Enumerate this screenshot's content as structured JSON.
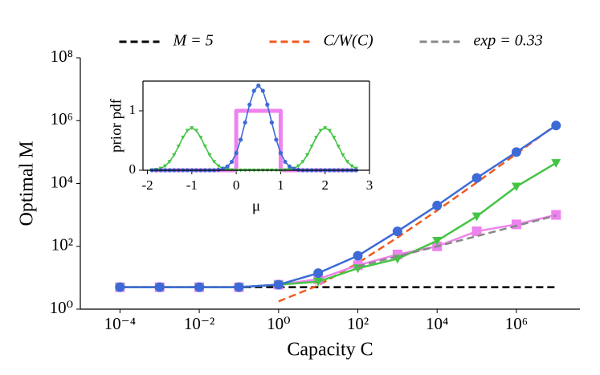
{
  "chart_data": [
    {
      "type": "line",
      "xlabel": "Capacity C",
      "ylabel": "Optimal M",
      "xscale": "log",
      "yscale": "log",
      "xlim": [
        1e-05,
        40000000
      ],
      "ylim": [
        1,
        100000000
      ],
      "xticks": [
        {
          "value": 0.0001,
          "label": "10⁻⁴"
        },
        {
          "value": 0.01,
          "label": "10⁻²"
        },
        {
          "value": 1,
          "label": "10⁰"
        },
        {
          "value": 100,
          "label": "10²"
        },
        {
          "value": 10000,
          "label": "10⁴"
        },
        {
          "value": 1000000,
          "label": "10⁶"
        }
      ],
      "yticks": [
        {
          "value": 1,
          "label": "10⁰"
        },
        {
          "value": 100,
          "label": "10²"
        },
        {
          "value": 10000,
          "label": "10⁴"
        },
        {
          "value": 1000000,
          "label": "10⁶"
        },
        {
          "value": 100000000,
          "label": "10⁸"
        }
      ],
      "legend_loc": "upper center",
      "x": [
        0.0001,
        0.001,
        0.01,
        0.1,
        1,
        10,
        100,
        1000,
        10000,
        100000,
        1000000,
        10000000
      ],
      "series": [
        {
          "name": "M = 5",
          "color": "#000000",
          "dash": true,
          "values": [
            5,
            5,
            5,
            5,
            5,
            5,
            5,
            5,
            5,
            5,
            5,
            5
          ]
        },
        {
          "name": "C/W(C)",
          "color": "#f05a1e",
          "dash": true,
          "values": [
            null,
            null,
            null,
            null,
            1.76,
            5.7,
            29.5,
            190,
            1383,
            10780,
            87850,
            740000
          ]
        },
        {
          "color": "#ee82ee",
          "marker": "square",
          "values": [
            5,
            5,
            5,
            5,
            6,
            9,
            25,
            55,
            100,
            300,
            500,
            1000
          ]
        },
        {
          "color": "#44c444",
          "marker": "triangle",
          "values": [
            5,
            5,
            5,
            5,
            6,
            7.5,
            20,
            40,
            150,
            900,
            8000,
            45000
          ]
        },
        {
          "color": "#3d6ad6",
          "marker": "circle",
          "values": [
            5,
            5,
            5,
            5,
            6,
            14,
            50,
            300,
            2000,
            15000,
            100000,
            700000
          ]
        },
        {
          "name": "exp = 0.33",
          "color": "#888888",
          "dash": true,
          "values": [
            null,
            null,
            null,
            null,
            null,
            null,
            23,
            48,
            100,
            210,
            450,
            950
          ]
        }
      ]
    },
    {
      "type": "line",
      "xlabel": "μ",
      "ylabel": "prior pdf",
      "xlim": [
        -2.1,
        3.0
      ],
      "ylim": [
        0,
        1.5
      ],
      "xticks": [
        -2,
        -1,
        0,
        1,
        2,
        3
      ],
      "yticks": [
        0,
        1
      ],
      "x": [
        -1.9,
        -1.8,
        -1.7,
        -1.6,
        -1.5,
        -1.4,
        -1.3,
        -1.2,
        -1.1,
        -1.0,
        -0.9,
        -0.8,
        -0.7,
        -0.6,
        -0.5,
        -0.4,
        -0.3,
        -0.2,
        -0.1,
        0,
        0.1,
        0.2,
        0.3,
        0.4,
        0.5,
        0.6,
        0.7,
        0.8,
        0.9,
        1.0,
        1.1,
        1.2,
        1.3,
        1.4,
        1.5,
        1.6,
        1.7,
        1.8,
        1.9,
        2.0,
        2.1,
        2.2,
        2.3,
        2.4,
        2.5,
        2.6,
        2.7
      ],
      "series": [
        {
          "color": "#ee82ee",
          "thick": true,
          "x": [
            -1.9,
            0,
            0,
            1,
            1,
            2.7
          ],
          "values": [
            0,
            0,
            1,
            1,
            0,
            0
          ]
        },
        {
          "color": "#44c444",
          "marker": "triangle",
          "values": [
            0.004,
            0.012,
            0.031,
            0.072,
            0.144,
            0.257,
            0.401,
            0.552,
            0.668,
            0.712,
            0.668,
            0.552,
            0.401,
            0.257,
            0.144,
            0.072,
            0.031,
            0.012,
            0.004,
            0,
            0,
            0,
            0,
            0,
            0,
            0,
            0,
            0,
            0,
            0,
            0.004,
            0.012,
            0.031,
            0.072,
            0.144,
            0.257,
            0.401,
            0.552,
            0.668,
            0.712,
            0.668,
            0.552,
            0.401,
            0.257,
            0.144,
            0.072,
            0.031
          ]
        },
        {
          "color": "#3d6ad6",
          "marker": "circle",
          "values": [
            0,
            0,
            0,
            0,
            0,
            0,
            0,
            0,
            0,
            0,
            0,
            0,
            0,
            0,
            0,
            0.008,
            0.024,
            0.063,
            0.143,
            0.289,
            0.514,
            0.803,
            1.104,
            1.337,
            1.425,
            1.337,
            1.104,
            0.803,
            0.514,
            0.289,
            0.143,
            0.063,
            0.024,
            0.008,
            0,
            0,
            0,
            0,
            0,
            0,
            0,
            0,
            0,
            0,
            0,
            0,
            0
          ]
        }
      ]
    }
  ]
}
